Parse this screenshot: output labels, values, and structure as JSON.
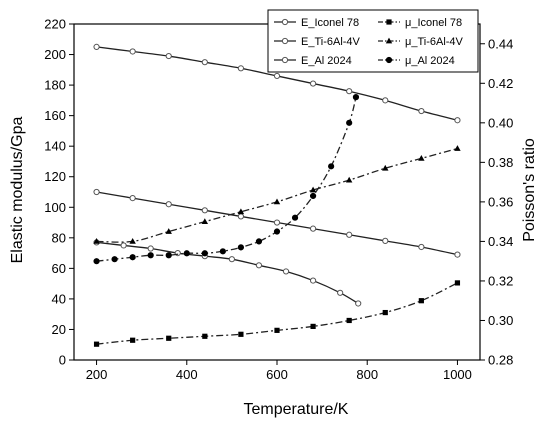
{
  "chart_data": {
    "type": "line",
    "xlabel": "Temperature/K",
    "ylabel_left": "Elastic modulus/Gpa",
    "ylabel_right": "Poisson's ratio",
    "xlim": [
      150,
      1050
    ],
    "ylim_left": [
      0,
      220
    ],
    "ylim_right": [
      0.28,
      0.45
    ],
    "xticks": [
      200,
      400,
      600,
      800,
      1000
    ],
    "yticks_left": [
      0,
      20,
      40,
      60,
      80,
      100,
      120,
      140,
      160,
      180,
      200,
      220
    ],
    "yticks_right": [
      0.28,
      0.3,
      0.32,
      0.34,
      0.36,
      0.38,
      0.4,
      0.42,
      0.44
    ],
    "legend_position": "top-right",
    "series": [
      {
        "name": "E_Iconel 78",
        "axis": "left",
        "style": "solid",
        "marker": "open-circle",
        "x": [
          200,
          280,
          360,
          440,
          520,
          600,
          680,
          760,
          840,
          920,
          1000
        ],
        "y": [
          205,
          202,
          199,
          195,
          191,
          186,
          181,
          176,
          170,
          163,
          157
        ]
      },
      {
        "name": "E_Ti-6Al-4V",
        "axis": "left",
        "style": "solid",
        "marker": "open-circle",
        "x": [
          200,
          280,
          360,
          440,
          520,
          600,
          680,
          760,
          840,
          920,
          1000
        ],
        "y": [
          110,
          106,
          102,
          98,
          94,
          90,
          86,
          82,
          78,
          74,
          69
        ]
      },
      {
        "name": "E_Al 2024",
        "axis": "left",
        "style": "solid",
        "marker": "open-circle",
        "x": [
          200,
          260,
          320,
          380,
          440,
          500,
          560,
          620,
          680,
          740,
          780
        ],
        "y": [
          77,
          75,
          73,
          70,
          68,
          66,
          62,
          58,
          52,
          44,
          37
        ]
      },
      {
        "name": "μ_Iconel 78",
        "axis": "right",
        "style": "dash-dot",
        "marker": "square",
        "x": [
          200,
          280,
          360,
          440,
          520,
          600,
          680,
          760,
          840,
          920,
          1000
        ],
        "y": [
          0.288,
          0.29,
          0.291,
          0.292,
          0.293,
          0.295,
          0.297,
          0.3,
          0.304,
          0.31,
          0.319
        ]
      },
      {
        "name": "μ_Ti-6Al-4V",
        "axis": "right",
        "style": "dash-dot",
        "marker": "triangle",
        "x": [
          200,
          280,
          360,
          440,
          520,
          600,
          680,
          760,
          840,
          920,
          1000
        ],
        "y": [
          0.34,
          0.34,
          0.345,
          0.35,
          0.355,
          0.36,
          0.366,
          0.371,
          0.377,
          0.382,
          0.387
        ]
      },
      {
        "name": "μ_Al 2024",
        "axis": "right",
        "style": "dash-dot",
        "marker": "filled-circle",
        "x": [
          200,
          240,
          280,
          320,
          360,
          400,
          440,
          480,
          520,
          560,
          600,
          640,
          680,
          720,
          760,
          775
        ],
        "y": [
          0.33,
          0.331,
          0.332,
          0.333,
          0.333,
          0.334,
          0.334,
          0.335,
          0.337,
          0.34,
          0.345,
          0.352,
          0.363,
          0.378,
          0.4,
          0.413
        ]
      }
    ]
  }
}
